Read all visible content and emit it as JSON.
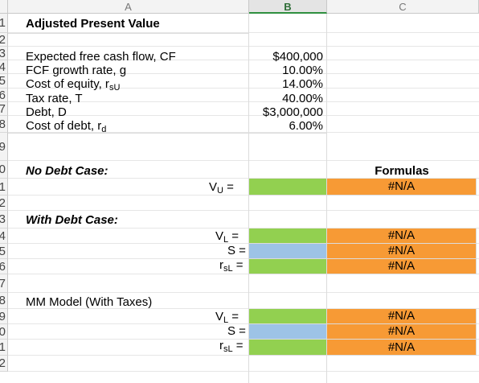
{
  "columns": [
    "A",
    "B",
    "C"
  ],
  "rows": [
    "1",
    "2",
    "3",
    "4",
    "5",
    "6",
    "7",
    "8",
    "9",
    "0",
    "1",
    "2",
    "3",
    "4",
    "5",
    "6",
    "7",
    "8",
    "9",
    "0",
    "1",
    "2"
  ],
  "title": "Adjusted Present Value",
  "inputs": [
    {
      "label": "Expected free cash flow, CF",
      "value": "$400,000"
    },
    {
      "label": "FCF growth rate, g",
      "value": "10.00%"
    },
    {
      "label_main": "Cost of equity, r",
      "label_sub": "sU",
      "value": "14.00%"
    },
    {
      "label": "Tax rate, T",
      "value": "40.00%"
    },
    {
      "label": "Debt, D",
      "value": "$3,000,000"
    },
    {
      "label_main": "Cost of debt, r",
      "label_sub": "d",
      "value": "6.00%"
    }
  ],
  "no_debt_header": "No Debt Case:",
  "formulas_header": "Formulas",
  "with_debt_header": "With Debt Case:",
  "mm_header": "MM Model (With Taxes)",
  "labels": {
    "vu_main": "V",
    "vu_sub": "U",
    "vl_main": "V",
    "vl_sub": "L",
    "s": "S",
    "rsl_main": "r",
    "rsl_sub": "sL",
    "eq": " ="
  },
  "na": "#N/A",
  "colors": {
    "green": "#92d050",
    "blue": "#9dc3e6",
    "orange": "#f79a35"
  }
}
